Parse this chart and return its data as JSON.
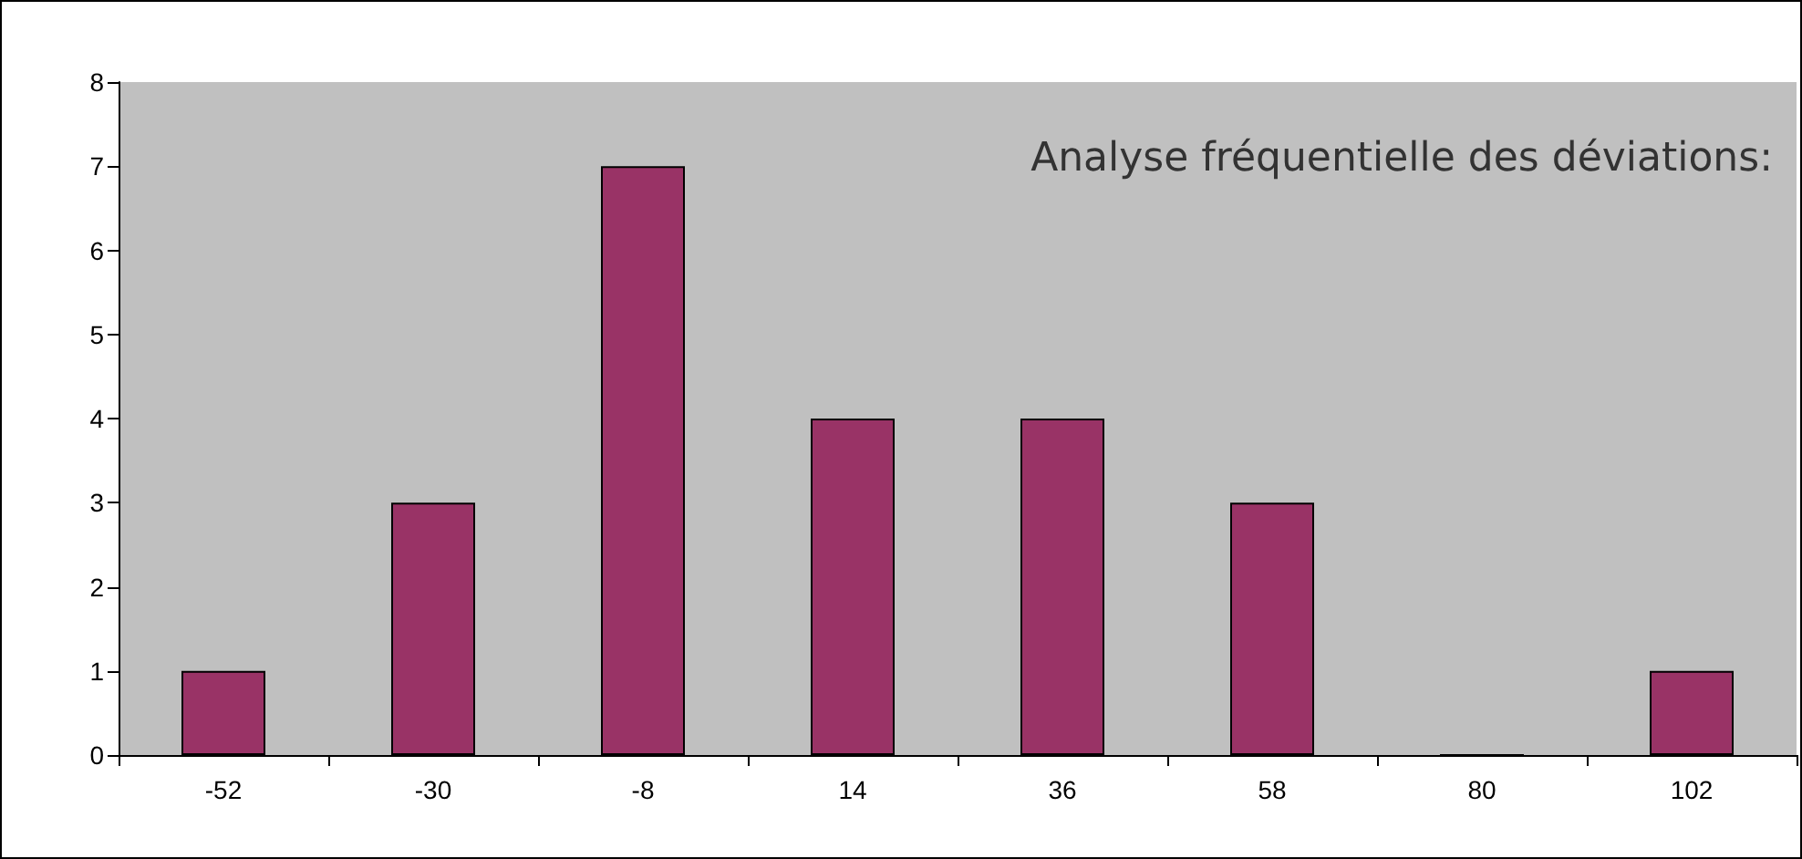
{
  "chart_data": {
    "type": "bar",
    "title": "Analyse fréquentielle des déviations:",
    "categories": [
      "-52",
      "-30",
      "-8",
      "14",
      "36",
      "58",
      "80",
      "102"
    ],
    "values": [
      1,
      3,
      7,
      4,
      4,
      3,
      0,
      1
    ],
    "color": "#993366",
    "ylim": [
      0,
      8
    ],
    "yticks": [
      0,
      1,
      2,
      3,
      4,
      5,
      6,
      7,
      8
    ]
  }
}
